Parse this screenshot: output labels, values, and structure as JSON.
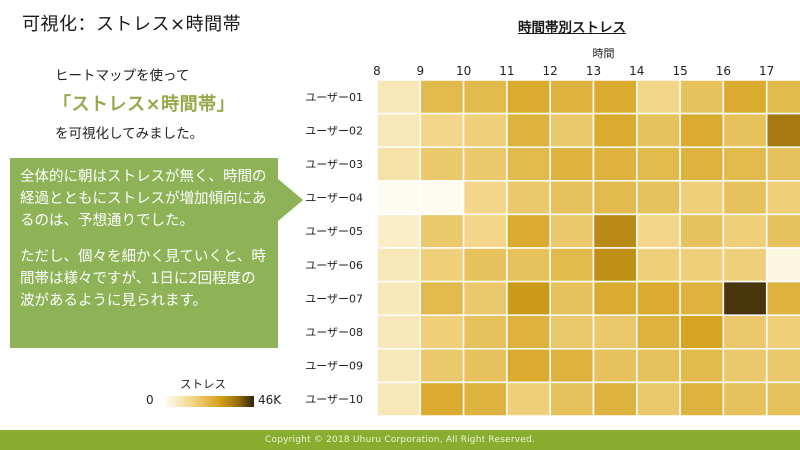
{
  "slide": {
    "title": "可視化：ストレス×時間帯",
    "intro_line1": "ヒートマップを使って",
    "intro_line2": "「ストレス×時間帯」",
    "intro_line3": "を可視化してみました。",
    "callout_p1": "全体的に朝はストレスが無く、時間の経過とともにストレスが増加傾向にあるのは、予想通りでした。",
    "callout_p2": "ただし、個々を細かく見ていくと、時間帯は様々ですが、1日に2回程度の波があるように見られます。",
    "footer": "Copyright © 2018 Uhuru Corporation, All Right Reserved.",
    "accent_color": "#8db356",
    "footer_color": "#89ad2f"
  },
  "chart_data": {
    "type": "heatmap",
    "title": "時間帯別ストレス",
    "xlabel": "時間",
    "x": [
      "8",
      "9",
      "10",
      "11",
      "12",
      "13",
      "14",
      "15",
      "16",
      "17"
    ],
    "y": [
      "ユーザー01",
      "ユーザー02",
      "ユーザー03",
      "ユーザー04",
      "ユーザー05",
      "ユーザー06",
      "ユーザー07",
      "ユーザー08",
      "ユーザー09",
      "ユーザー10"
    ],
    "values": [
      [
        8000,
        22000,
        22000,
        26000,
        24000,
        26000,
        14000,
        20000,
        26000,
        22000
      ],
      [
        8000,
        14000,
        16000,
        24000,
        18000,
        26000,
        20000,
        26000,
        20000,
        36000
      ],
      [
        10000,
        18000,
        18000,
        22000,
        24000,
        24000,
        22000,
        24000,
        22000,
        20000
      ],
      [
        1000,
        1000,
        14000,
        18000,
        20000,
        22000,
        20000,
        16000,
        20000,
        16000
      ],
      [
        6000,
        18000,
        14000,
        26000,
        18000,
        33000,
        14000,
        20000,
        16000,
        20000
      ],
      [
        8000,
        16000,
        20000,
        20000,
        22000,
        32000,
        16000,
        16000,
        16000,
        3000
      ],
      [
        8000,
        22000,
        18000,
        30000,
        20000,
        26000,
        26000,
        24000,
        44000,
        24000
      ],
      [
        8000,
        16000,
        20000,
        24000,
        18000,
        18000,
        24000,
        28000,
        18000,
        16000
      ],
      [
        8000,
        18000,
        20000,
        26000,
        24000,
        20000,
        20000,
        22000,
        18000,
        18000
      ],
      [
        8000,
        26000,
        24000,
        16000,
        20000,
        24000,
        18000,
        24000,
        20000,
        20000
      ]
    ],
    "legend": {
      "title": "ストレス",
      "min": 0,
      "max": 46000,
      "min_label": "0",
      "max_label": "46K"
    }
  }
}
